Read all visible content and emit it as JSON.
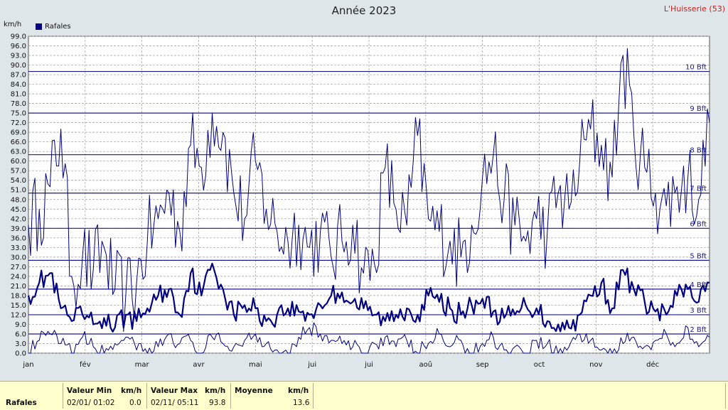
{
  "header": {
    "title": "Année 2023",
    "station": "L'Huisserie (53)",
    "unit": "km/h"
  },
  "legend": {
    "label": "Rafales",
    "color": "#000080"
  },
  "stats": {
    "row_label": "Rafales",
    "min_header": "Valeur Min",
    "min_unit": "km/h",
    "min_date": "02/01/  01:02",
    "min_value": "0.0",
    "max_header": "Valeur Max",
    "max_unit": "km/h",
    "max_date": "02/11/  05:11",
    "max_value": "93.8",
    "avg_header": "Moyenne",
    "avg_unit": "km/h",
    "avg_value": "13.6"
  },
  "chart_data": {
    "type": "line",
    "title": "Année 2023",
    "ylabel": "km/h",
    "ylim": [
      0,
      99
    ],
    "ytick_step": 3,
    "grid": true,
    "legend_position": "top-left",
    "x_labels": [
      "jan",
      "fév",
      "mar",
      "avr",
      "mai",
      "jui",
      "jui",
      "aoû",
      "sep",
      "oct",
      "nov",
      "déc"
    ],
    "beaufort": [
      {
        "label": "2 Bft",
        "value": 6
      },
      {
        "label": "3 Bft",
        "value": 12
      },
      {
        "label": "4 Bft",
        "value": 20
      },
      {
        "label": "5 Bft",
        "value": 29
      },
      {
        "label": "6 Bft",
        "value": 39
      },
      {
        "label": "7 Bft",
        "value": 50
      },
      {
        "label": "8 Bft",
        "value": 62
      },
      {
        "label": "9 Bft",
        "value": 75
      },
      {
        "label": "10 Bft",
        "value": 88
      }
    ],
    "series": [
      {
        "name": "Rafales",
        "role": "max",
        "weekly": [
          40,
          45,
          52,
          70,
          24,
          30,
          26,
          33,
          20,
          18,
          22,
          35,
          42,
          50,
          38,
          65,
          58,
          75,
          69,
          50,
          42,
          60,
          45,
          38,
          35,
          40,
          33,
          38,
          30,
          35,
          40,
          25,
          28,
          58,
          45,
          40,
          68,
          42,
          38,
          35,
          30,
          40,
          55,
          62,
          48,
          40,
          35,
          42,
          38,
          50,
          45,
          60,
          70,
          65,
          55,
          93,
          68,
          58,
          50,
          46,
          52,
          55,
          48,
          72
        ]
      },
      {
        "name": "Rafales",
        "role": "mean",
        "weekly": [
          18,
          22,
          25,
          14,
          10,
          12,
          9,
          11,
          8,
          12,
          10,
          14,
          18,
          20,
          12,
          25,
          18,
          28,
          20,
          12,
          15,
          14,
          10,
          12,
          14,
          13,
          12,
          15,
          18,
          19,
          16,
          14,
          12,
          10,
          12,
          14,
          12,
          18,
          16,
          14,
          12,
          15,
          17,
          13,
          11,
          12,
          15,
          14,
          10,
          9,
          8,
          12,
          18,
          22,
          14,
          26,
          20,
          16,
          13,
          12,
          18,
          20,
          16,
          22
        ]
      },
      {
        "name": "Rafales",
        "role": "min",
        "weekly": [
          0,
          4,
          6,
          3,
          0,
          5,
          2,
          0,
          3,
          5,
          1,
          0,
          2,
          6,
          3,
          4,
          0,
          5,
          3,
          2,
          4,
          6,
          3,
          1,
          0,
          5,
          8,
          6,
          4,
          3,
          2,
          0,
          3,
          5,
          2,
          4,
          0,
          3,
          6,
          2,
          4,
          0,
          3,
          5,
          1,
          2,
          0,
          4,
          3,
          0,
          2,
          6,
          4,
          1,
          0,
          3,
          5,
          2,
          4,
          6,
          3,
          8,
          2,
          5
        ]
      }
    ]
  }
}
